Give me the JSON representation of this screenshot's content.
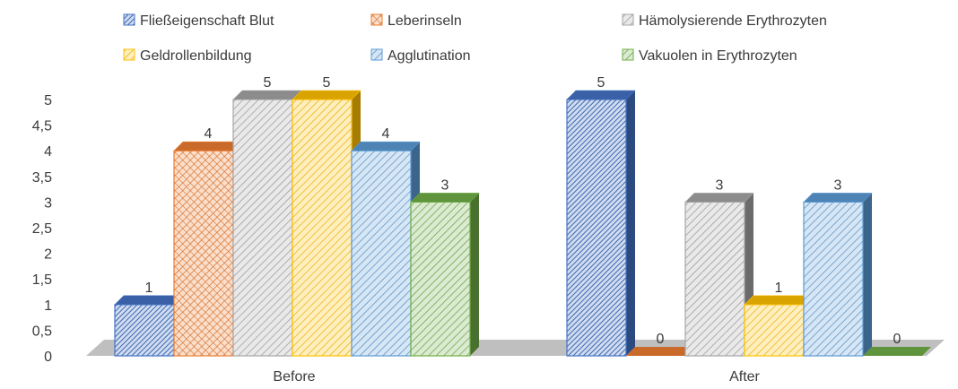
{
  "chart_data": {
    "type": "bar",
    "categories": [
      "Before",
      "After"
    ],
    "series": [
      {
        "name": "Fließeigenschaft Blut",
        "values": [
          1,
          5
        ],
        "color": "#4472C4",
        "pattern": "dense"
      },
      {
        "name": "Leberinseln",
        "values": [
          4,
          0
        ],
        "color": "#ED7D31",
        "pattern": "cross"
      },
      {
        "name": "Hämolysierende Erythrozyten",
        "values": [
          5,
          3
        ],
        "color": "#A5A5A5",
        "pattern": "diag"
      },
      {
        "name": "Geldrollenbildung",
        "values": [
          5,
          1
        ],
        "color": "#FFC000",
        "pattern": "diag"
      },
      {
        "name": "Agglutination",
        "values": [
          4,
          3
        ],
        "color": "#5B9BD5",
        "pattern": "diag"
      },
      {
        "name": "Vakuolen in Erythrozyten",
        "values": [
          3,
          0
        ],
        "color": "#70AD47",
        "pattern": "diag"
      }
    ],
    "y_ticks": [
      "0",
      "0,5",
      "1",
      "1,5",
      "2",
      "2,5",
      "3",
      "3,5",
      "4",
      "4,5",
      "5"
    ],
    "ylim": [
      0,
      5
    ],
    "grid": false,
    "legend_position": "top",
    "floor_color": "#BFBFBF",
    "data_labels": true
  }
}
